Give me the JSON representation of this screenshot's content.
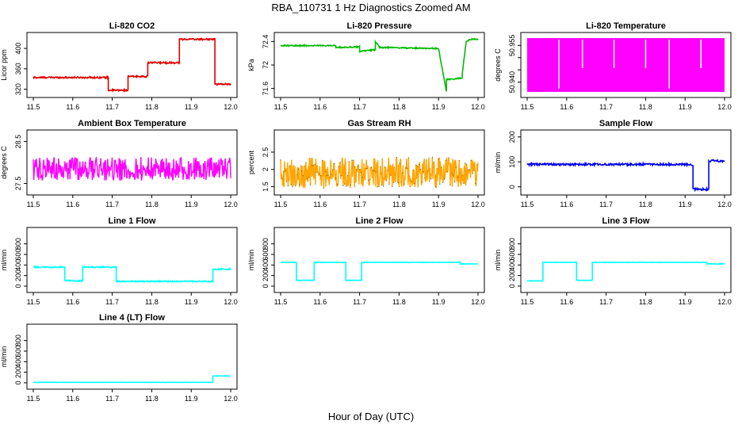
{
  "page": {
    "title": "RBA_110731  1 Hz Diagnostics Zoomed AM",
    "xlabel": "Hour of Day (UTC)"
  },
  "chart_data": [
    {
      "type": "line",
      "title": "Li-820 CO2",
      "ylabel": "Licor ppm",
      "color": "#dd0000",
      "xlim": [
        11.5,
        12.0
      ],
      "ylim": [
        310,
        425
      ],
      "yticks": [
        320,
        360,
        400
      ],
      "xticks": [
        11.5,
        11.6,
        11.7,
        11.8,
        11.9,
        12.0
      ],
      "series": [
        {
          "x": [
            11.5,
            11.6,
            11.69,
            11.69,
            11.74,
            11.74,
            11.79,
            11.79,
            11.87,
            11.87,
            11.96,
            11.96,
            12.0
          ],
          "y": [
            343,
            343,
            343,
            318,
            318,
            345,
            345,
            372,
            372,
            418,
            418,
            330,
            330
          ],
          "noise": 1.5
        }
      ]
    },
    {
      "type": "line",
      "title": "Li-820 Pressure",
      "ylabel": "kPa",
      "color": "#00bb00",
      "xlim": [
        11.5,
        12.0
      ],
      "ylim": [
        71.5,
        72.5
      ],
      "yticks": [
        71.6,
        72.0,
        72.4
      ],
      "xticks": [
        11.5,
        11.6,
        11.7,
        11.8,
        11.9,
        12.0
      ],
      "series": [
        {
          "x": [
            11.5,
            11.64,
            11.64,
            11.7,
            11.7,
            11.74,
            11.74,
            11.75,
            11.75,
            11.9,
            11.92,
            11.92,
            11.96,
            11.96,
            11.97,
            11.98,
            12.0
          ],
          "y": [
            72.33,
            72.33,
            72.3,
            72.31,
            72.23,
            72.26,
            72.4,
            72.32,
            72.3,
            72.28,
            71.55,
            71.75,
            71.78,
            71.85,
            72.4,
            72.44,
            72.44
          ],
          "noise": 0.01
        }
      ]
    },
    {
      "type": "line",
      "title": "Li-820 Temperature",
      "ylabel": "degrees C",
      "color": "#ff00ff",
      "xlim": [
        11.5,
        12.0
      ],
      "ylim": [
        50.935,
        50.959
      ],
      "yticks": [
        50.94,
        50.945,
        50.95,
        50.955
      ],
      "ytick_labels": [
        "50.940",
        "",
        "",
        "50.955"
      ],
      "xticks": [
        11.5,
        11.6,
        11.7,
        11.8,
        11.9,
        12.0
      ],
      "band": [
        50.936,
        50.958
      ],
      "gaps": [
        11.58,
        11.64,
        11.64,
        11.72,
        11.8,
        11.86,
        11.94,
        11.94
      ]
    },
    {
      "type": "line",
      "title": "Ambient Box Temperature",
      "ylabel": "degrees C",
      "color": "#ff00ff",
      "xlim": [
        11.5,
        12.0
      ],
      "ylim": [
        27.3,
        28.7
      ],
      "yticks": [
        27.5,
        28.5
      ],
      "xticks": [
        11.5,
        11.6,
        11.7,
        11.8,
        11.9,
        12.0
      ],
      "series": [
        {
          "x": [
            11.5,
            12.0
          ],
          "y": [
            27.85,
            27.85
          ],
          "noise": 0.28
        }
      ]
    },
    {
      "type": "line",
      "title": "Gas Stream RH",
      "ylabel": "percent",
      "color": "#ffa500",
      "dot_color": "#7a5200",
      "xlim": [
        11.5,
        12.0
      ],
      "ylim": [
        1.35,
        3.05
      ],
      "yticks": [
        1.5,
        2.0,
        2.5
      ],
      "xticks": [
        11.5,
        11.6,
        11.7,
        11.8,
        11.9,
        12.0
      ],
      "series": [
        {
          "x": [
            11.5,
            12.0
          ],
          "y": [
            1.9,
            1.9
          ],
          "noise": 0.45
        }
      ]
    },
    {
      "type": "line",
      "title": "Sample Flow",
      "ylabel": "ml/min",
      "color": "#0000ee",
      "xlim": [
        11.5,
        12.0
      ],
      "ylim": [
        -20,
        215
      ],
      "yticks": [
        0,
        100,
        200
      ],
      "xticks": [
        11.5,
        11.6,
        11.7,
        11.8,
        11.9,
        12.0
      ],
      "series": [
        {
          "x": [
            11.5,
            11.9,
            11.92,
            11.92,
            11.96,
            11.96,
            11.97,
            12.0
          ],
          "y": [
            90,
            90,
            88,
            -10,
            -10,
            100,
            105,
            102
          ],
          "noise": 4
        }
      ]
    },
    {
      "type": "line",
      "title": "Line 1 Flow",
      "ylabel": "ml/min",
      "color": "#00ffff",
      "xlim": [
        11.5,
        12.0
      ],
      "ylim": [
        -60,
        1050
      ],
      "yticks": [
        0,
        200,
        400,
        600,
        800
      ],
      "xticks": [
        11.5,
        11.6,
        11.7,
        11.8,
        11.9,
        12.0
      ],
      "series": [
        {
          "x": [
            11.5,
            11.58,
            11.58,
            11.625,
            11.625,
            11.71,
            11.71,
            11.955,
            11.955,
            12.0
          ],
          "y": [
            360,
            360,
            100,
            100,
            360,
            360,
            90,
            90,
            320,
            320
          ],
          "noise": 12
        }
      ]
    },
    {
      "type": "line",
      "title": "Line 2 Flow",
      "ylabel": "ml/min",
      "color": "#00ffff",
      "xlim": [
        11.5,
        12.0
      ],
      "ylim": [
        -60,
        1050
      ],
      "yticks": [
        0,
        200,
        400,
        600,
        800
      ],
      "xticks": [
        11.5,
        11.6,
        11.7,
        11.8,
        11.9,
        12.0
      ],
      "series": [
        {
          "x": [
            11.5,
            11.54,
            11.54,
            11.585,
            11.585,
            11.665,
            11.665,
            11.705,
            11.705,
            11.955,
            11.955,
            12.0
          ],
          "y": [
            450,
            450,
            110,
            110,
            450,
            450,
            110,
            110,
            450,
            450,
            420,
            420
          ],
          "noise": 4
        }
      ]
    },
    {
      "type": "line",
      "title": "Line 3 Flow",
      "ylabel": "ml/min",
      "color": "#00ffff",
      "xlim": [
        11.5,
        12.0
      ],
      "ylim": [
        -60,
        1050
      ],
      "yticks": [
        0,
        200,
        400,
        600,
        800
      ],
      "xticks": [
        11.5,
        11.6,
        11.7,
        11.8,
        11.9,
        12.0
      ],
      "series": [
        {
          "x": [
            11.5,
            11.54,
            11.54,
            11.625,
            11.625,
            11.665,
            11.665,
            11.955,
            11.955,
            12.0
          ],
          "y": [
            100,
            100,
            450,
            450,
            110,
            110,
            450,
            450,
            420,
            420
          ],
          "noise": 4
        }
      ]
    },
    {
      "type": "line",
      "title": "Line 4 (LT) Flow",
      "ylabel": "ml/min",
      "color": "#00ffff",
      "xlim": [
        11.5,
        12.0
      ],
      "ylim": [
        -60,
        1050
      ],
      "yticks": [
        0,
        200,
        400,
        600,
        800
      ],
      "xticks": [
        11.5,
        11.6,
        11.7,
        11.8,
        11.9,
        12.0
      ],
      "series": [
        {
          "x": [
            11.5,
            11.955,
            11.955,
            12.0
          ],
          "y": [
            10,
            10,
            130,
            130
          ],
          "noise": 2
        }
      ]
    }
  ]
}
